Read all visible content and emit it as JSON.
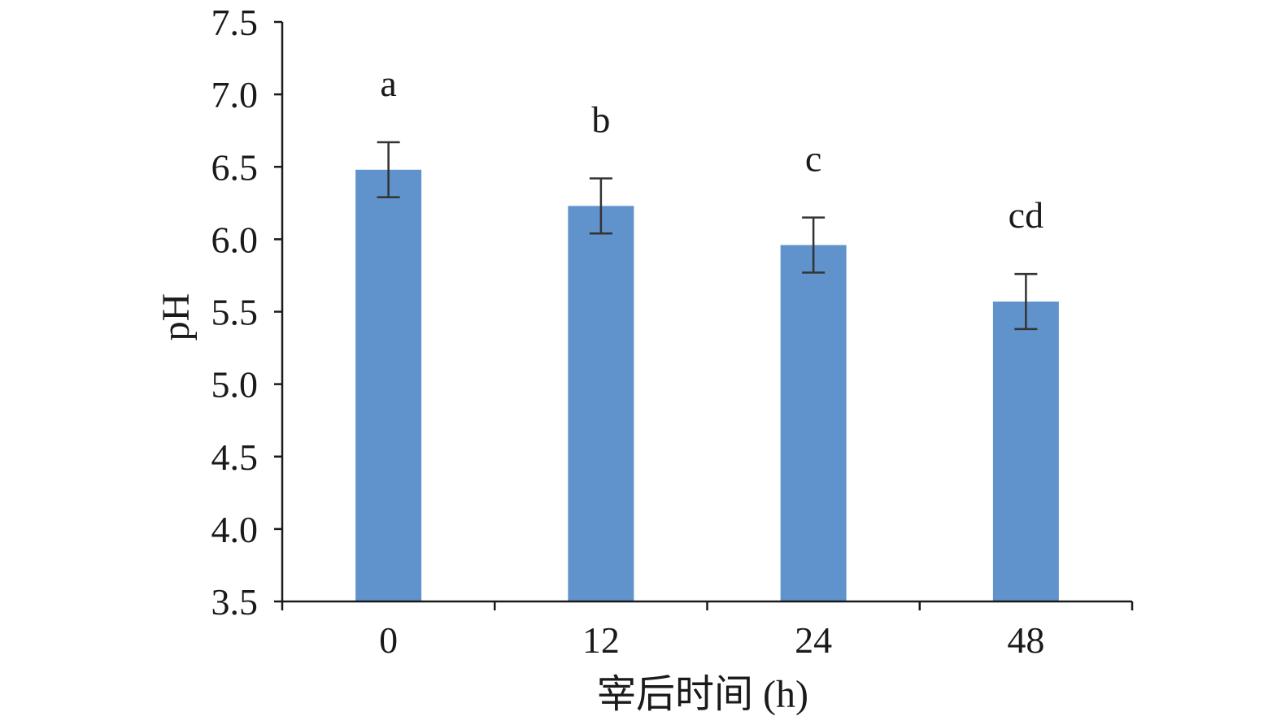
{
  "chart_data": {
    "type": "bar",
    "title": "",
    "xlabel": "宰后时间 (h)",
    "ylabel": "pH",
    "categories": [
      "0",
      "12",
      "24",
      "48"
    ],
    "values": [
      6.48,
      6.23,
      5.96,
      5.57
    ],
    "errors": [
      0.19,
      0.19,
      0.19,
      0.19
    ],
    "significance": [
      "a",
      "b",
      "c",
      "cd"
    ],
    "ylim": [
      3.5,
      7.5
    ],
    "yticks": [
      "3.5",
      "4.0",
      "4.5",
      "5.0",
      "5.5",
      "6.0",
      "6.5",
      "7.0",
      "7.5"
    ],
    "grid": false,
    "legend": "none",
    "bar_color": "#6092cb",
    "axis_color": "#1a1a1a",
    "errorbar_color": "#333333"
  }
}
